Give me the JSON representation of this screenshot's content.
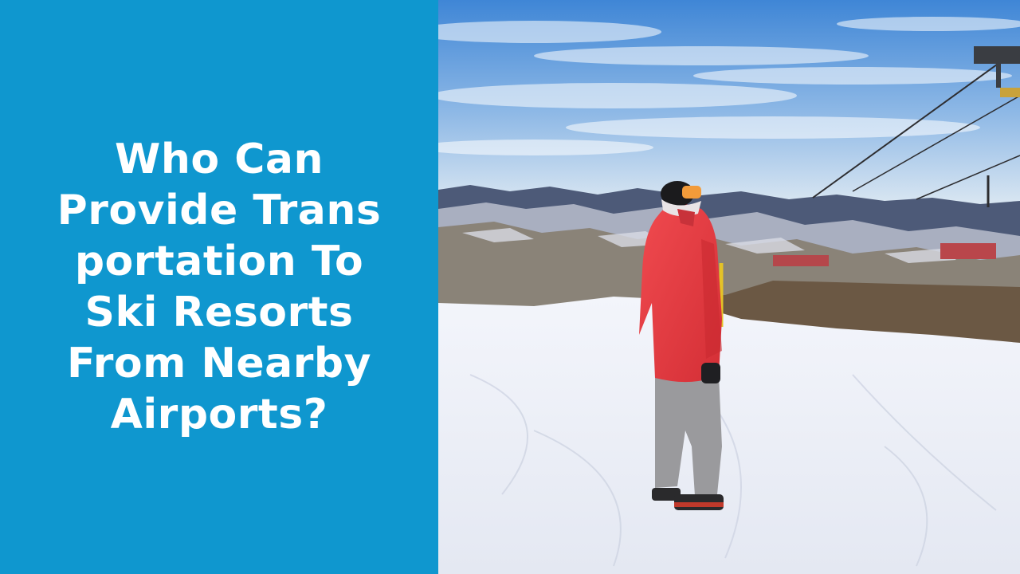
{
  "headline": {
    "lines": [
      "Who Can",
      "Provide Trans",
      "portation To",
      "Ski Resorts",
      "From Nearby",
      "Airports?"
    ]
  },
  "colors": {
    "panel": "#0f97cf",
    "headline_text": "#ffffff",
    "jacket": "#e8383f",
    "pants": "#9a9a9d",
    "snow": "#eef1f8",
    "sky_top": "#3f86d6",
    "sky_bottom": "#cfe1f1"
  },
  "photo": {
    "subject": "snowboarder-in-red-jacket-on-ski-slope"
  }
}
